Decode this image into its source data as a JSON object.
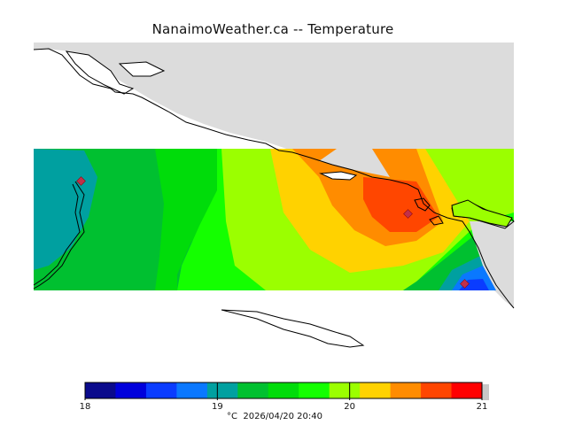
{
  "title": "NanaimoWeather.ca -- Temperature",
  "legend": {
    "unit": "°C",
    "timestamp": "2026/04/20 20:40",
    "min": 18,
    "max": 21,
    "ticks": [
      "18",
      "19",
      "20",
      "21"
    ],
    "colors": [
      "#0a0a8c",
      "#0000dc",
      "#0a3cff",
      "#0a78ff",
      "#00a0a0",
      "#00c030",
      "#00dc0a",
      "#14ff00",
      "#9bff00",
      "#ffd200",
      "#ff8c00",
      "#ff4600",
      "#ff0000"
    ]
  },
  "colors": {
    "land": "#dcdcdc",
    "water": "#ffffff",
    "coast": "#000000",
    "station": "#c0304a"
  }
}
